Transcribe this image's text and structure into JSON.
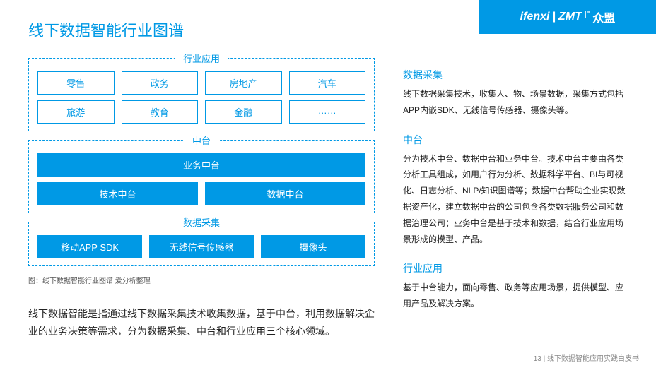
{
  "colors": {
    "primary": "#0099e5",
    "text": "#222222",
    "bg": "#ffffff"
  },
  "header": {
    "brand1": "ifenxi",
    "sep": "|",
    "brand2": "ZMT",
    "brand3": "众盟"
  },
  "title": "线下数据智能行业图谱",
  "sections": {
    "industry": {
      "label": "行业应用",
      "row1": [
        "零售",
        "政务",
        "房地产",
        "汽车"
      ],
      "row2": [
        "旅游",
        "教育",
        "金融",
        "……"
      ]
    },
    "middle": {
      "label": "中台",
      "top": "业务中台",
      "left": "技术中台",
      "right": "数据中台"
    },
    "collect": {
      "label": "数据采集",
      "items": [
        "移动APP SDK",
        "无线信号传感器",
        "摄像头"
      ]
    }
  },
  "caption": "图：线下数据智能行业图谱  爱分析整理",
  "leftDesc": "线下数据智能是指通过线下数据采集技术收集数据，基于中台，利用数据解决企业的业务决策等需求，分为数据采集、中台和行业应用三个核心领域。",
  "right": [
    {
      "title": "数据采集",
      "body": "线下数据采集技术，收集人、物、场景数据，采集方式包括APP内嵌SDK、无线信号传感器、摄像头等。"
    },
    {
      "title": "中台",
      "body": "分为技术中台、数据中台和业务中台。技术中台主要由各类分析工具组成，如用户行为分析、数据科学平台、BI与可视化、日志分析、NLP/知识图谱等；数据中台帮助企业实现数据资产化，建立数据中台的公司包含各类数据服务公司和数据治理公司；业务中台是基于技术和数据，结合行业应用场景形成的模型、产品。"
    },
    {
      "title": "行业应用",
      "body": "基于中台能力，面向零售、政务等应用场景，提供模型、应用产品及解决方案。"
    }
  ],
  "footer": "13 | 线下数据智能应用实践白皮书"
}
